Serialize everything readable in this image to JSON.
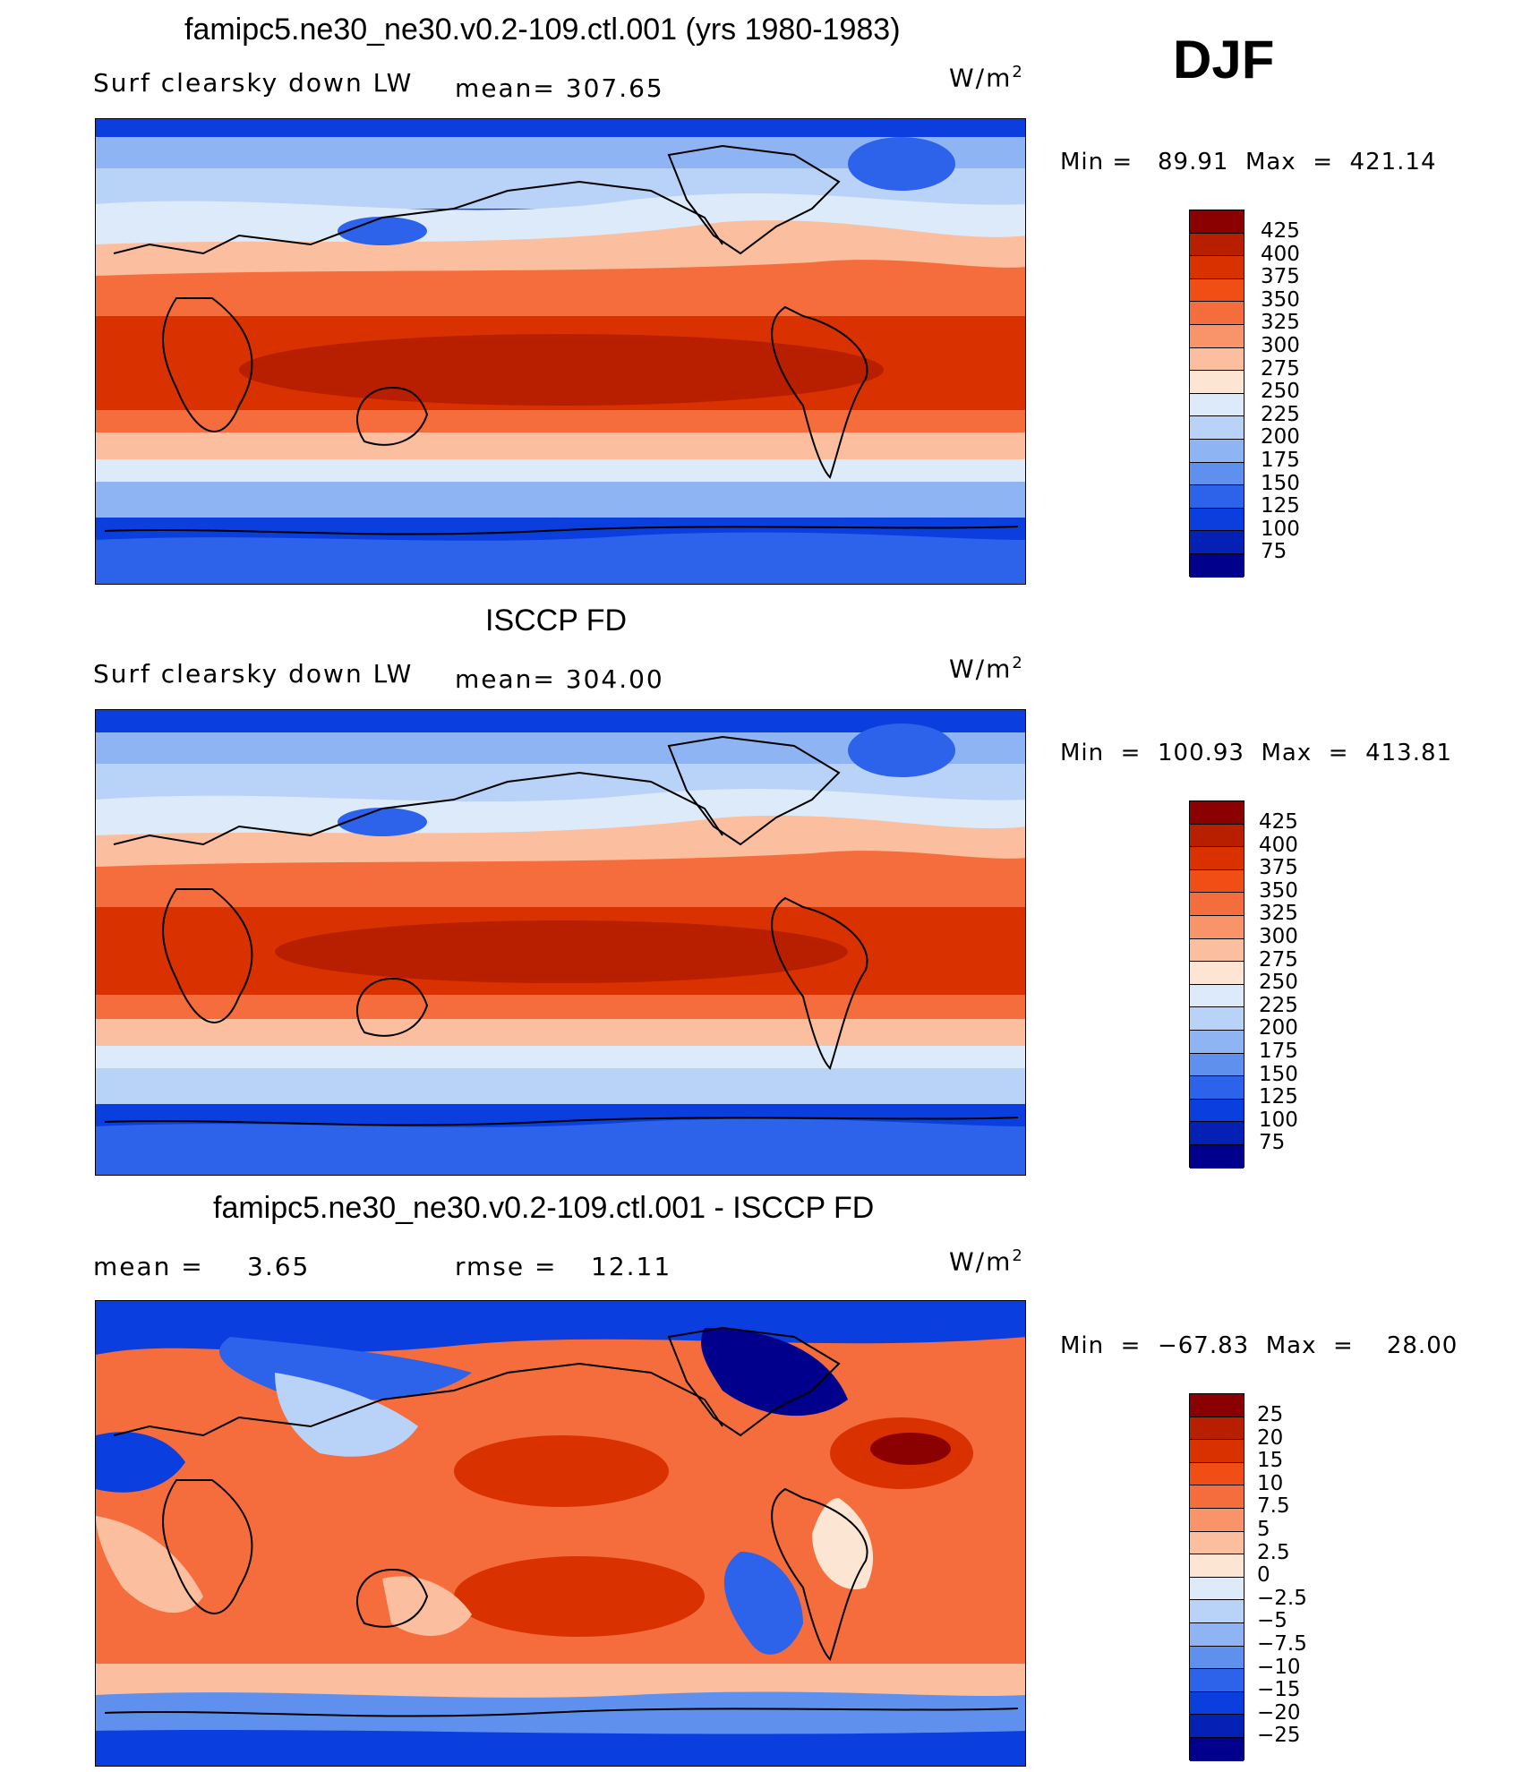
{
  "figure": {
    "season": "DJF",
    "unit": "W/m",
    "unit_sup": "2"
  },
  "panel1": {
    "title": "famipc5.ne30_ne30.v0.2-109.ctl.001 (yrs 1980-1983)",
    "variable": "Surf clearsky down LW",
    "mean_text": "mean=  307.65",
    "minmax": "Min =   89.91  Max  =  421.14"
  },
  "panel2": {
    "title": "ISCCP FD",
    "variable": "Surf clearsky down LW",
    "mean_text": "mean=  304.00",
    "minmax": "Min  =  100.93  Max  =  413.81"
  },
  "panel3": {
    "title": "famipc5.ne30_ne30.v0.2-109.ctl.001 - ISCCP FD",
    "mean_label": "mean  =",
    "mean_value": "3.65",
    "rmse_label": "rmse  =",
    "rmse_value": "12.11",
    "minmax": "Min  =  −67.83  Max  =    28.00"
  },
  "colorbar_abs": {
    "labels": [
      "425",
      "400",
      "375",
      "350",
      "325",
      "300",
      "275",
      "250",
      "225",
      "200",
      "175",
      "150",
      "125",
      "100",
      "75"
    ],
    "colors": [
      "#8b0000",
      "#b81e00",
      "#d93200",
      "#f04e14",
      "#f56d3c",
      "#f8936a",
      "#fbbe9e",
      "#fde5d3",
      "#dceafa",
      "#b9d2f8",
      "#8fb4f3",
      "#5f90ee",
      "#2d62ea",
      "#0a3ede",
      "#0520b4",
      "#00008c"
    ]
  },
  "colorbar_diff": {
    "labels": [
      "25",
      "20",
      "15",
      "10",
      "7.5",
      "5",
      "2.5",
      "0",
      "−2.5",
      "−5",
      "−7.5",
      "−10",
      "−15",
      "−20",
      "−25"
    ],
    "colors": [
      "#8b0000",
      "#b81e00",
      "#d93200",
      "#f04e14",
      "#f56d3c",
      "#f8936a",
      "#fbbe9e",
      "#fde5d3",
      "#dceafa",
      "#b9d2f8",
      "#8fb4f3",
      "#5f90ee",
      "#2d62ea",
      "#0a3ede",
      "#0520b4",
      "#00008c"
    ]
  }
}
